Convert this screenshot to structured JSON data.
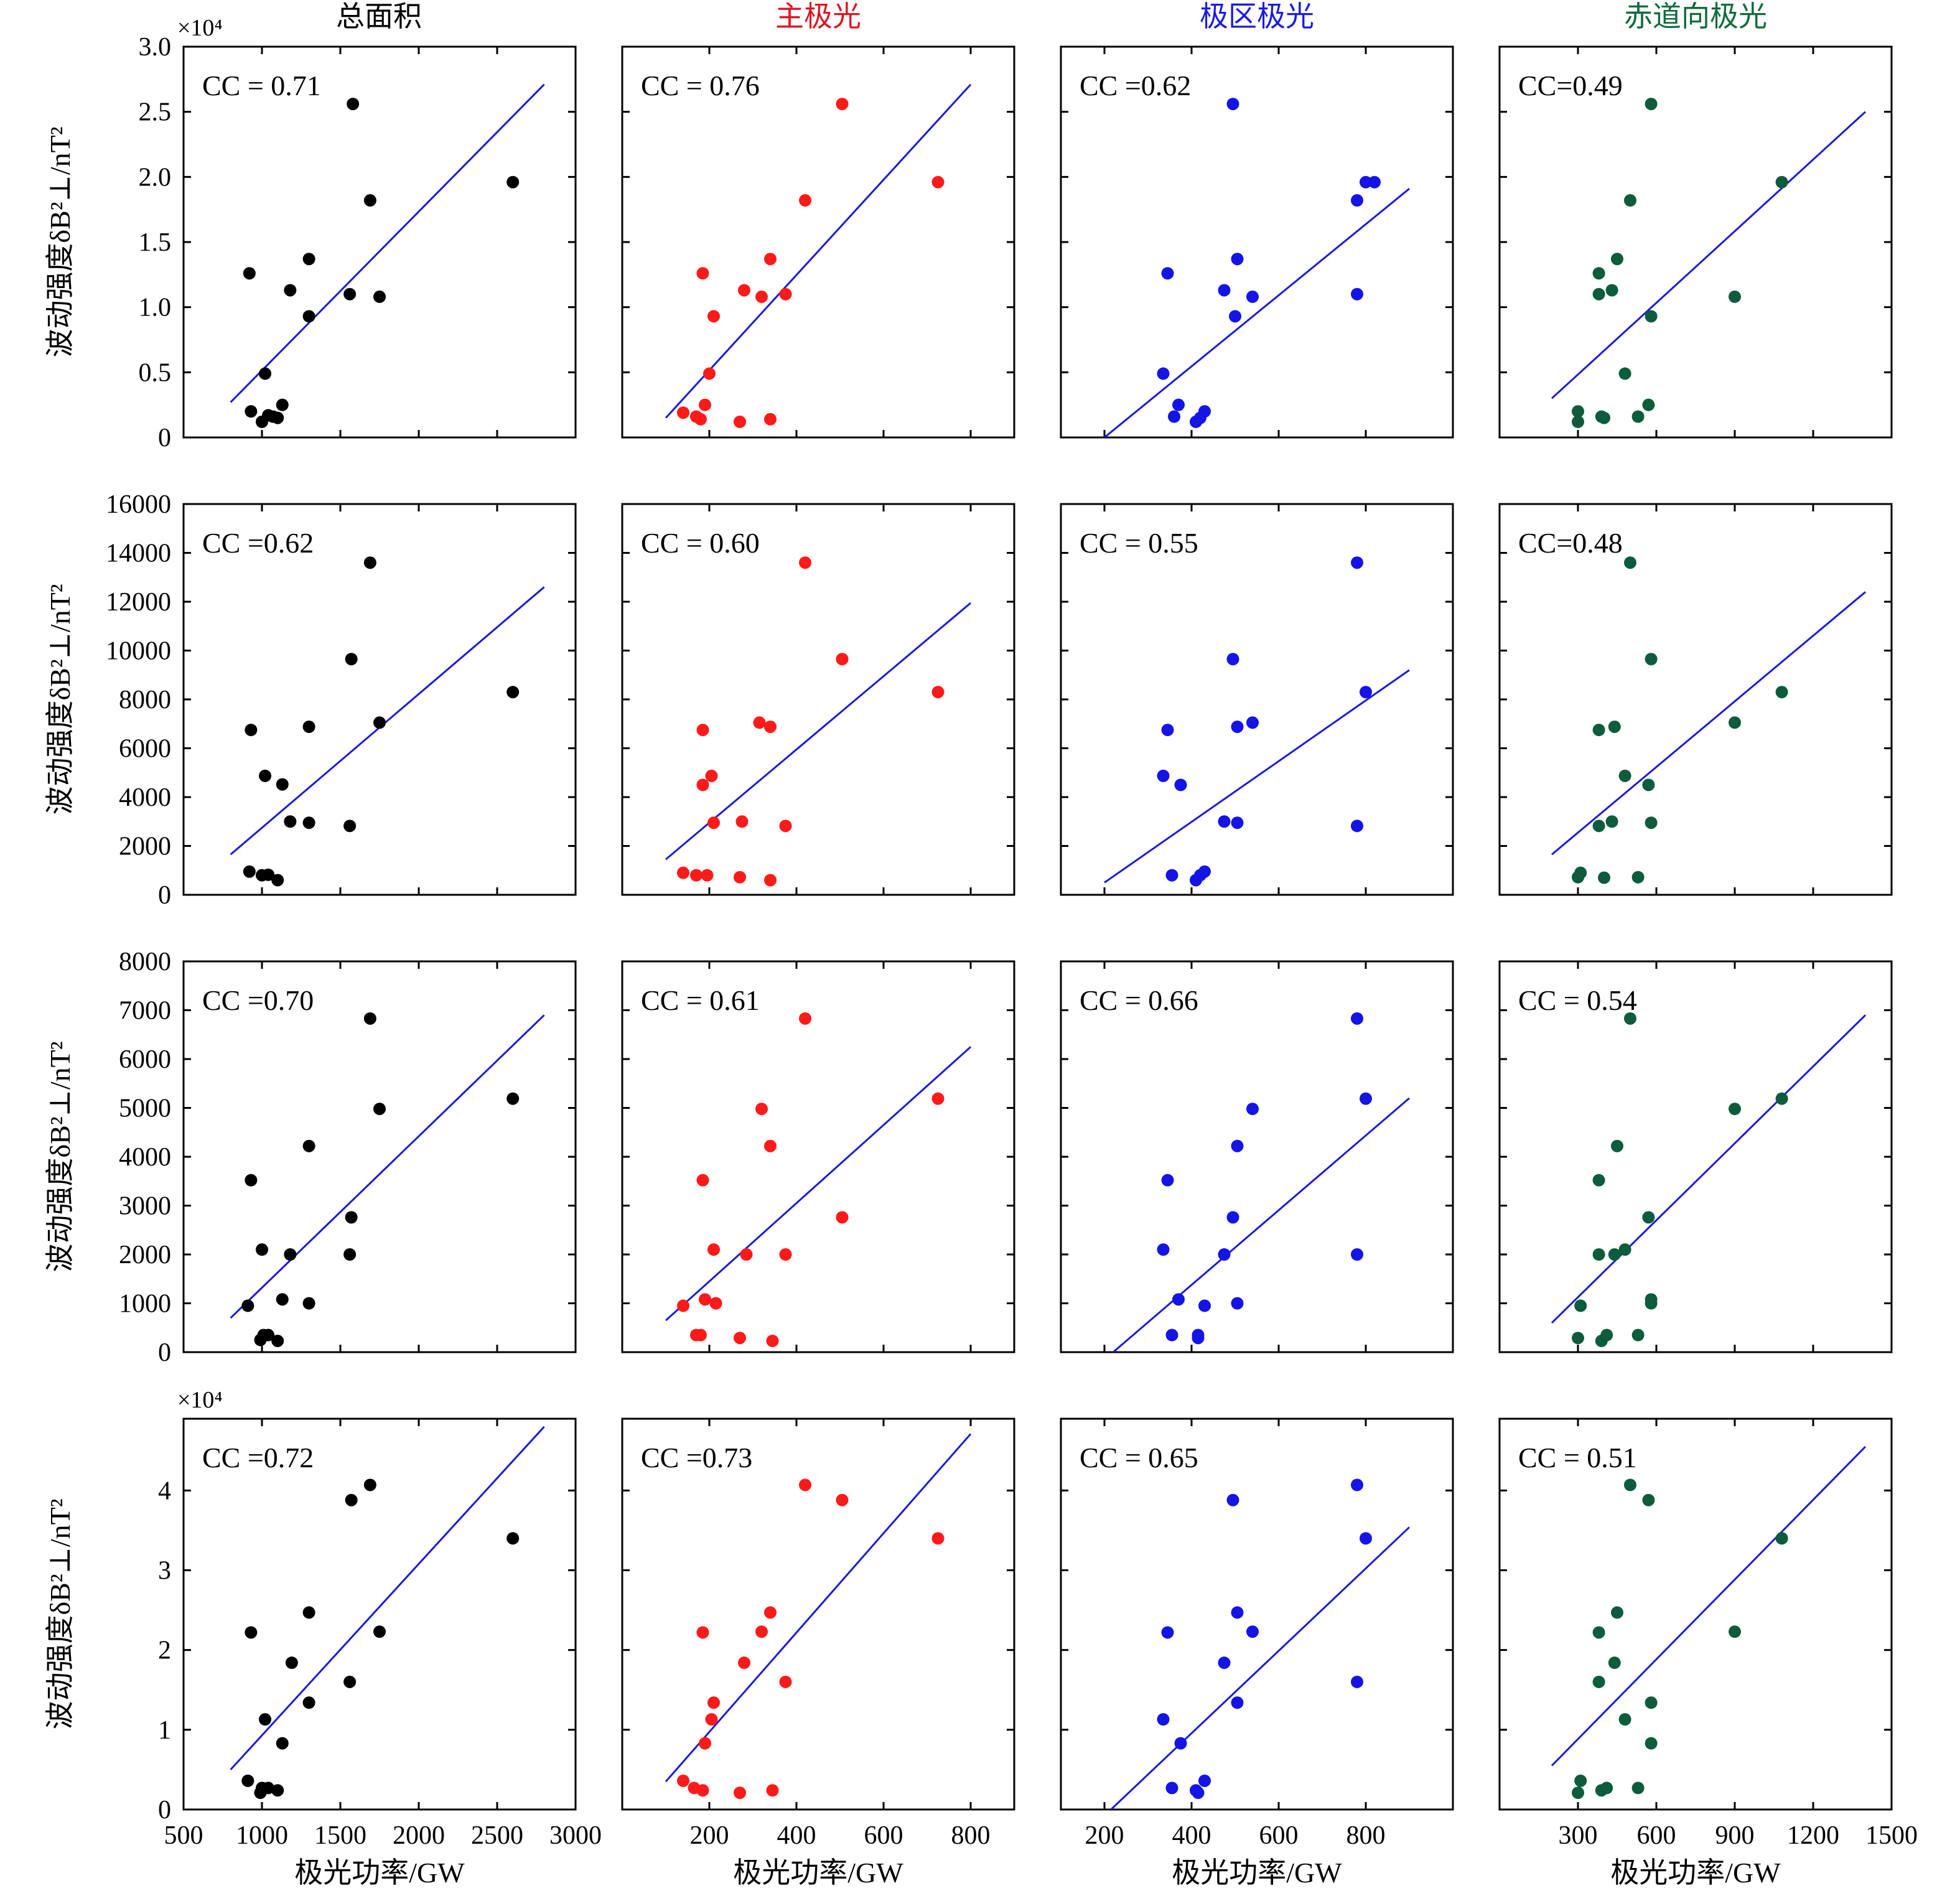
{
  "figure": {
    "column_titles": [
      {
        "text": "总面积",
        "color": "#000000"
      },
      {
        "text": "主极光",
        "color": "#e0141e"
      },
      {
        "text": "极区极光",
        "color": "#1a1ae6"
      },
      {
        "text": "赤道向极光",
        "color": "#0f6b3a"
      }
    ],
    "xlabel": "极光功率/GW",
    "ylabel": "波动强度δB²⊥/nT²",
    "colors": {
      "total": "#000000",
      "main": "#ff1a1a",
      "polar": "#1414e6",
      "equatorward": "#0d5c3c",
      "fit_line": "#1a1adc"
    }
  },
  "chart_data": [
    {
      "type": "scatter",
      "row": 1,
      "col": 1,
      "annotation": "CC = 0.71",
      "exponent_label": "×10⁴",
      "x_ticks": [],
      "y_ticks": [
        "0",
        "0.5",
        "1.0",
        "1.5",
        "2.0",
        "2.5",
        "3.0"
      ],
      "xlim": [
        500,
        3000
      ],
      "ylim": [
        0,
        3.0
      ],
      "x": [
        920,
        930,
        1000,
        1020,
        1040,
        1070,
        1100,
        1130,
        1180,
        1300,
        1300,
        1560,
        1580,
        1690,
        1750,
        2600
      ],
      "y": [
        1.26,
        0.2,
        0.12,
        0.49,
        0.17,
        0.16,
        0.15,
        0.25,
        1.13,
        0.93,
        1.37,
        1.1,
        2.56,
        1.82,
        1.08,
        1.96
      ],
      "fit": {
        "x": [
          800,
          2800
        ],
        "y": [
          0.27,
          2.71
        ]
      }
    },
    {
      "type": "scatter",
      "row": 1,
      "col": 2,
      "annotation": "CC = 0.76",
      "x_ticks": [],
      "y_ticks": [],
      "xlim": [
        0,
        900
      ],
      "ylim": [
        0,
        3.0
      ],
      "x": [
        140,
        170,
        180,
        190,
        185,
        200,
        210,
        270,
        280,
        320,
        340,
        340,
        375,
        420,
        505,
        725
      ],
      "y": [
        0.19,
        0.16,
        0.14,
        0.25,
        1.26,
        0.49,
        0.93,
        0.12,
        1.13,
        1.08,
        1.37,
        0.14,
        1.1,
        1.82,
        2.56,
        1.96
      ],
      "fit": {
        "x": [
          100,
          800
        ],
        "y": [
          0.15,
          2.71
        ]
      }
    },
    {
      "type": "scatter",
      "row": 1,
      "col": 3,
      "annotation": "CC =0.62",
      "x_ticks": [],
      "y_ticks": [],
      "xlim": [
        100,
        1000
      ],
      "ylim": [
        0,
        3.0
      ],
      "x": [
        335,
        345,
        360,
        370,
        410,
        420,
        430,
        475,
        495,
        500,
        505,
        540,
        780,
        780,
        800,
        820
      ],
      "y": [
        0.49,
        1.26,
        0.16,
        0.25,
        0.12,
        0.15,
        0.2,
        1.13,
        2.56,
        0.93,
        1.37,
        1.08,
        1.1,
        1.82,
        1.96,
        1.96
      ],
      "fit": {
        "x": [
          200,
          900
        ],
        "y": [
          0,
          1.91
        ]
      }
    },
    {
      "type": "scatter",
      "row": 1,
      "col": 4,
      "annotation": "CC=0.49",
      "x_ticks": [],
      "y_ticks": [],
      "xlim": [
        0,
        1500
      ],
      "ylim": [
        0,
        3.0
      ],
      "x": [
        300,
        300,
        380,
        380,
        390,
        400,
        430,
        450,
        480,
        500,
        530,
        570,
        580,
        580,
        900,
        1080
      ],
      "y": [
        0.2,
        0.12,
        1.26,
        1.1,
        0.16,
        0.15,
        1.13,
        1.37,
        0.49,
        1.82,
        0.16,
        0.25,
        0.93,
        2.56,
        1.08,
        1.96
      ],
      "fit": {
        "x": [
          200,
          1400
        ],
        "y": [
          0.3,
          2.5
        ]
      }
    },
    {
      "type": "scatter",
      "row": 2,
      "col": 1,
      "annotation": "CC =0.62",
      "x_ticks": [],
      "y_ticks": [
        "0",
        "2000",
        "4000",
        "6000",
        "8000",
        "10000",
        "12000",
        "14000",
        "16000"
      ],
      "xlim": [
        500,
        3000
      ],
      "ylim": [
        0,
        16000
      ],
      "x": [
        920,
        930,
        1000,
        1020,
        1040,
        1100,
        1130,
        1180,
        1300,
        1300,
        1560,
        1570,
        1690,
        1750,
        2600
      ],
      "y": [
        950,
        6750,
        800,
        4870,
        820,
        600,
        4520,
        3000,
        2950,
        6880,
        2820,
        9650,
        13600,
        7050,
        8300
      ],
      "fit": {
        "x": [
          800,
          2800
        ],
        "y": [
          1650,
          12600
        ]
      }
    },
    {
      "type": "scatter",
      "row": 2,
      "col": 2,
      "annotation": "CC = 0.60",
      "x_ticks": [],
      "y_ticks": [],
      "xlim": [
        0,
        900
      ],
      "ylim": [
        0,
        16000
      ],
      "x": [
        140,
        170,
        185,
        185,
        195,
        205,
        210,
        270,
        275,
        315,
        340,
        340,
        375,
        420,
        505,
        725
      ],
      "y": [
        900,
        800,
        6750,
        4500,
        800,
        4870,
        2950,
        720,
        3000,
        7050,
        6880,
        600,
        2820,
        13600,
        9650,
        8300
      ],
      "fit": {
        "x": [
          100,
          800
        ],
        "y": [
          1450,
          11950
        ]
      }
    },
    {
      "type": "scatter",
      "row": 2,
      "col": 3,
      "annotation": "CC = 0.55",
      "x_ticks": [],
      "y_ticks": [],
      "xlim": [
        100,
        1000
      ],
      "ylim": [
        0,
        16000
      ],
      "x": [
        335,
        345,
        355,
        375,
        410,
        420,
        430,
        475,
        495,
        505,
        505,
        540,
        780,
        780,
        800
      ],
      "y": [
        4870,
        6750,
        800,
        4500,
        600,
        800,
        950,
        3000,
        9650,
        2950,
        6880,
        7050,
        13600,
        2820,
        8300
      ],
      "fit": {
        "x": [
          200,
          900
        ],
        "y": [
          500,
          9200
        ]
      }
    },
    {
      "type": "scatter",
      "row": 2,
      "col": 4,
      "annotation": "CC=0.48",
      "x_ticks": [],
      "y_ticks": [],
      "xlim": [
        0,
        1500
      ],
      "ylim": [
        0,
        16000
      ],
      "x": [
        300,
        310,
        380,
        380,
        400,
        430,
        440,
        480,
        500,
        530,
        570,
        580,
        580,
        900,
        1080
      ],
      "y": [
        720,
        900,
        6750,
        2820,
        700,
        3000,
        6880,
        4870,
        13600,
        720,
        4500,
        9650,
        2950,
        7050,
        8300
      ],
      "fit": {
        "x": [
          200,
          1400
        ],
        "y": [
          1650,
          12400
        ]
      }
    },
    {
      "type": "scatter",
      "row": 3,
      "col": 1,
      "annotation": "CC =0.70",
      "x_ticks": [],
      "y_ticks": [
        "0",
        "1000",
        "2000",
        "3000",
        "4000",
        "5000",
        "6000",
        "7000",
        "8000"
      ],
      "xlim": [
        500,
        3000
      ],
      "ylim": [
        0,
        8000
      ],
      "x": [
        910,
        930,
        990,
        1000,
        1010,
        1040,
        1100,
        1130,
        1180,
        1300,
        1300,
        1560,
        1570,
        1690,
        1750,
        2600
      ],
      "y": [
        950,
        3520,
        250,
        2100,
        350,
        350,
        230,
        1080,
        2000,
        4220,
        1000,
        2000,
        2760,
        6830,
        4980,
        5190
      ],
      "fit": {
        "x": [
          800,
          2800
        ],
        "y": [
          700,
          6900
        ]
      }
    },
    {
      "type": "scatter",
      "row": 3,
      "col": 2,
      "annotation": "CC = 0.61",
      "x_ticks": [],
      "y_ticks": [],
      "xlim": [
        0,
        900
      ],
      "ylim": [
        0,
        8000
      ],
      "x": [
        140,
        170,
        180,
        185,
        190,
        210,
        215,
        270,
        285,
        320,
        340,
        345,
        375,
        420,
        505,
        725
      ],
      "y": [
        950,
        350,
        350,
        3520,
        1080,
        2100,
        1000,
        290,
        2000,
        4980,
        4220,
        230,
        2000,
        6830,
        2760,
        5190
      ],
      "fit": {
        "x": [
          100,
          800
        ],
        "y": [
          650,
          6250
        ]
      }
    },
    {
      "type": "scatter",
      "row": 3,
      "col": 3,
      "annotation": "CC = 0.66",
      "x_ticks": [],
      "y_ticks": [],
      "xlim": [
        100,
        1000
      ],
      "ylim": [
        0,
        8000
      ],
      "x": [
        335,
        345,
        355,
        370,
        415,
        415,
        430,
        475,
        495,
        505,
        505,
        540,
        780,
        780,
        800
      ],
      "y": [
        2100,
        3520,
        350,
        1080,
        350,
        290,
        950,
        2000,
        2760,
        1000,
        4220,
        4980,
        6830,
        2000,
        5190
      ],
      "fit": {
        "x": [
          220,
          900
        ],
        "y": [
          0,
          5200
        ]
      }
    },
    {
      "type": "scatter",
      "row": 3,
      "col": 4,
      "annotation": "CC = 0.54",
      "x_ticks": [],
      "y_ticks": [],
      "xlim": [
        0,
        1500
      ],
      "ylim": [
        0,
        8000
      ],
      "x": [
        300,
        310,
        380,
        380,
        390,
        410,
        440,
        450,
        480,
        500,
        530,
        570,
        580,
        580,
        900,
        1080
      ],
      "y": [
        290,
        950,
        3520,
        2000,
        230,
        350,
        2000,
        4220,
        2100,
        6830,
        350,
        2760,
        1080,
        1000,
        4980,
        5190
      ],
      "fit": {
        "x": [
          200,
          1400
        ],
        "y": [
          600,
          6900
        ]
      }
    },
    {
      "type": "scatter",
      "row": 4,
      "col": 1,
      "annotation": "CC =0.72",
      "exponent_label": "×10⁴",
      "x_ticks": [
        "500",
        "1000",
        "1500",
        "2000",
        "2500",
        "3000"
      ],
      "y_ticks": [
        "0",
        "1",
        "2",
        "3",
        "4"
      ],
      "xlim": [
        500,
        3000
      ],
      "ylim": [
        0,
        4.9
      ],
      "x": [
        910,
        930,
        990,
        1000,
        1020,
        1040,
        1100,
        1130,
        1190,
        1300,
        1300,
        1560,
        1570,
        1690,
        1750,
        2600
      ],
      "y": [
        0.36,
        2.22,
        0.21,
        0.27,
        1.13,
        0.27,
        0.24,
        0.83,
        1.84,
        1.34,
        2.47,
        1.6,
        3.88,
        4.07,
        2.23,
        3.4
      ],
      "fit": {
        "x": [
          800,
          2800
        ],
        "y": [
          0.5,
          4.8
        ]
      }
    },
    {
      "type": "scatter",
      "row": 4,
      "col": 2,
      "annotation": "CC =0.73",
      "x_ticks": [
        "200",
        "400",
        "600",
        "800"
      ],
      "y_ticks": [],
      "xlim": [
        0,
        900
      ],
      "ylim": [
        0,
        4.9
      ],
      "x": [
        140,
        165,
        185,
        185,
        190,
        205,
        210,
        270,
        280,
        320,
        340,
        345,
        375,
        420,
        505,
        725
      ],
      "y": [
        0.36,
        0.27,
        2.22,
        0.24,
        0.83,
        1.13,
        1.34,
        0.21,
        1.84,
        2.23,
        2.47,
        0.24,
        1.6,
        4.07,
        3.88,
        3.4
      ],
      "fit": {
        "x": [
          100,
          800
        ],
        "y": [
          0.35,
          4.71
        ]
      }
    },
    {
      "type": "scatter",
      "row": 4,
      "col": 3,
      "annotation": "CC = 0.65",
      "x_ticks": [
        "200",
        "400",
        "600",
        "800"
      ],
      "y_ticks": [],
      "xlim": [
        100,
        1000
      ],
      "ylim": [
        0,
        4.9
      ],
      "x": [
        335,
        345,
        355,
        375,
        410,
        415,
        430,
        475,
        495,
        505,
        505,
        540,
        780,
        780,
        800
      ],
      "y": [
        1.13,
        2.22,
        0.27,
        0.83,
        0.24,
        0.21,
        0.36,
        1.84,
        3.88,
        2.47,
        1.34,
        2.23,
        4.07,
        1.6,
        3.4
      ],
      "fit": {
        "x": [
          215,
          900
        ],
        "y": [
          0,
          3.54
        ]
      }
    },
    {
      "type": "scatter",
      "row": 4,
      "col": 4,
      "annotation": "CC = 0.51",
      "x_ticks": [
        "300",
        "600",
        "900",
        "1200",
        "1500"
      ],
      "y_ticks": [],
      "xlim": [
        0,
        1500
      ],
      "ylim": [
        0,
        4.9
      ],
      "x": [
        300,
        310,
        380,
        380,
        390,
        410,
        440,
        450,
        480,
        500,
        530,
        570,
        580,
        580,
        900,
        1080
      ],
      "y": [
        0.21,
        0.36,
        2.22,
        1.6,
        0.24,
        0.27,
        1.84,
        2.47,
        1.13,
        4.07,
        0.27,
        3.88,
        1.34,
        0.83,
        2.23,
        3.4
      ],
      "fit": {
        "x": [
          200,
          1400
        ],
        "y": [
          0.55,
          4.55
        ]
      }
    }
  ]
}
